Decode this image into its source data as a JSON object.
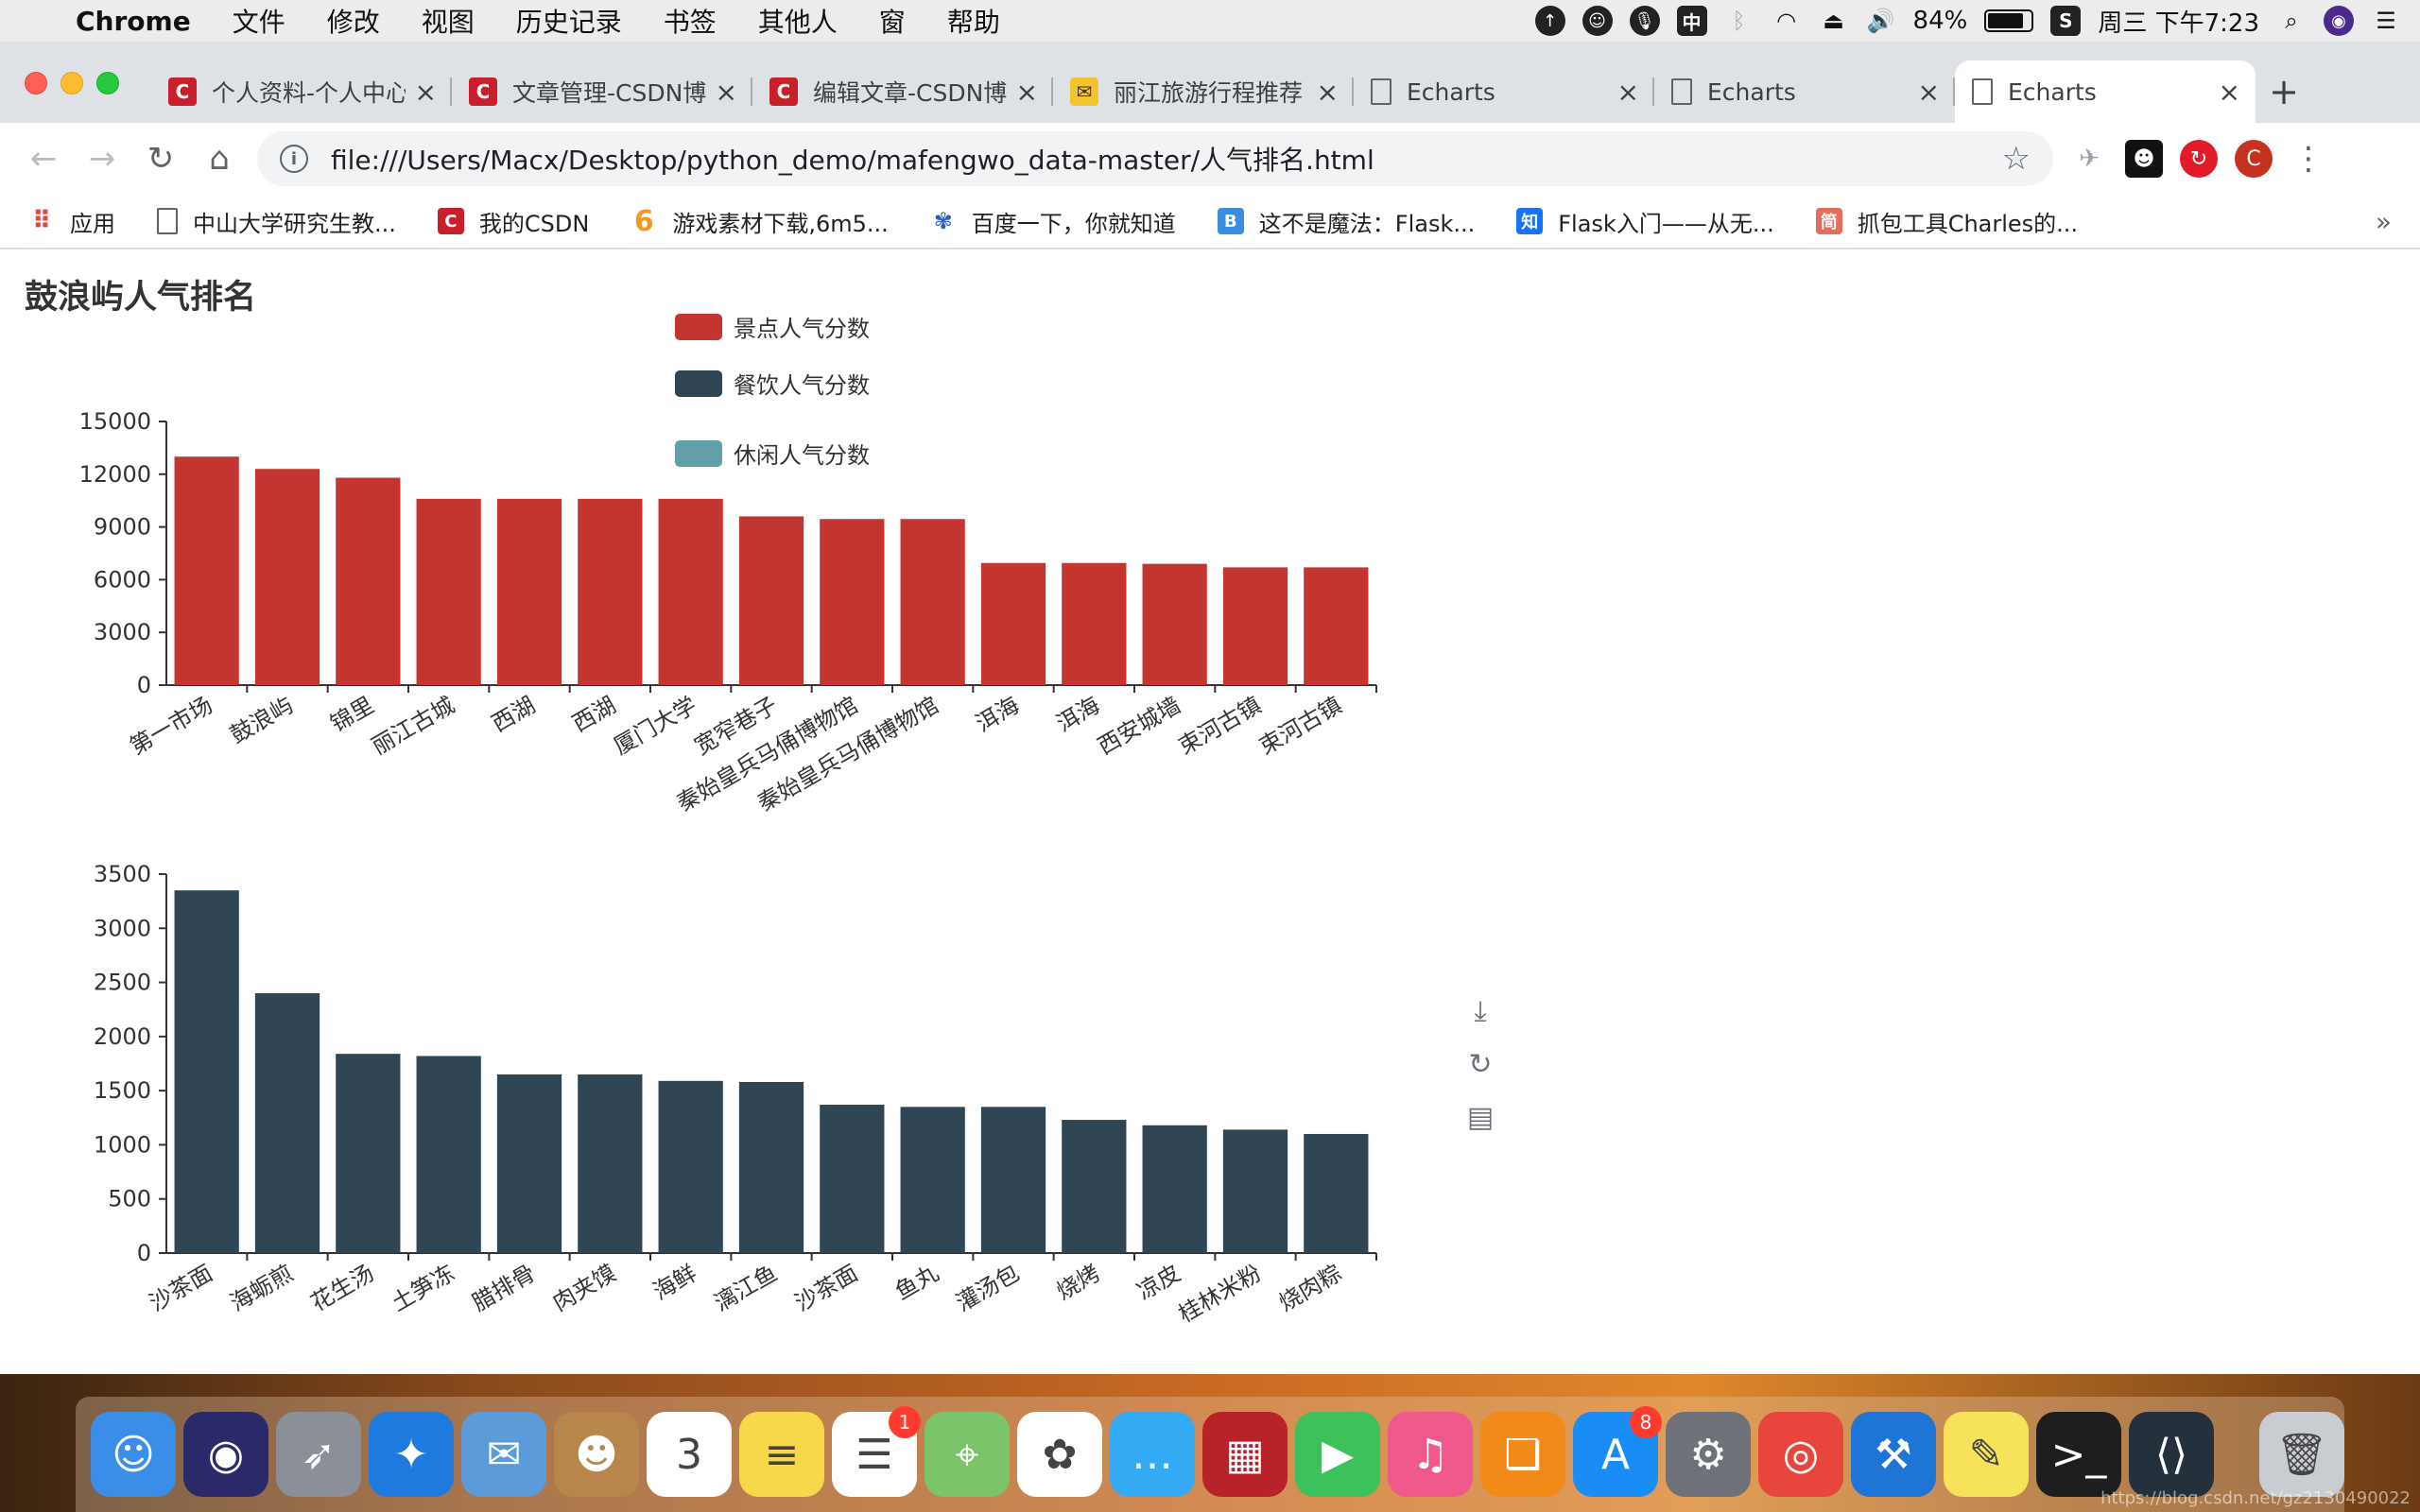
{
  "menubar": {
    "app_name": "Chrome",
    "items": [
      "文件",
      "修改",
      "视图",
      "历史记录",
      "书签",
      "其他人",
      "窗",
      "帮助"
    ],
    "battery_text": "84%",
    "battery_level": 0.84,
    "clock": "周三 下午7:23",
    "ime_label": "中"
  },
  "tabs": [
    {
      "label": "个人资料-个人中心",
      "icon": "csdn-icon"
    },
    {
      "label": "文章管理-CSDN博客",
      "icon": "csdn-icon"
    },
    {
      "label": "编辑文章-CSDN博客",
      "icon": "csdn-icon"
    },
    {
      "label": "丽江旅游行程推荐",
      "icon": "mail-icon"
    },
    {
      "label": "Echarts",
      "icon": "document-icon"
    },
    {
      "label": "Echarts",
      "icon": "document-icon"
    },
    {
      "label": "Echarts",
      "icon": "document-icon"
    }
  ],
  "omnibox": {
    "url": "file:///Users/Macx/Desktop/python_demo/mafengwo_data-master/人气排名.html"
  },
  "profile_initial": "C",
  "bookmarks": [
    {
      "label": "应用",
      "icon": "apps-icon"
    },
    {
      "label": "中山大学研究生教...",
      "icon": "page-icon"
    },
    {
      "label": "我的CSDN",
      "icon": "csdn-icon"
    },
    {
      "label": "游戏素材下载,6m5...",
      "icon": "six-icon"
    },
    {
      "label": "百度一下，你就知道",
      "icon": "baidu-icon"
    },
    {
      "label": "这不是魔法：Flask...",
      "icon": "blog-icon"
    },
    {
      "label": "Flask入门——从无...",
      "icon": "zhihu-icon"
    },
    {
      "label": "抓包工具Charles的...",
      "icon": "jianshu-icon"
    }
  ],
  "chart_data": [
    {
      "type": "bar",
      "title": "鼓浪屿人气排名",
      "legend": [
        "景点人气分数",
        "餐饮人气分数",
        "休闲人气分数"
      ],
      "legend_colors": [
        "#c23531",
        "#2f4554",
        "#61a0a8"
      ],
      "categories": [
        "第一市场",
        "鼓浪屿",
        "锦里",
        "丽江古城",
        "西湖",
        "西湖",
        "厦门大学",
        "宽窄巷子",
        "秦始皇兵马俑博物馆",
        "秦始皇兵马俑博物馆",
        "洱海",
        "洱海",
        "西安城墙",
        "束河古镇",
        "束河古镇"
      ],
      "series": [
        {
          "name": "景点人气分数",
          "color": "#c23531",
          "values": [
            13000,
            12300,
            11800,
            10600,
            10600,
            10600,
            10600,
            9600,
            9450,
            9450,
            6950,
            6950,
            6900,
            6700,
            6700
          ]
        }
      ],
      "yticks": [
        0,
        3000,
        6000,
        9000,
        12000,
        15000
      ],
      "ylim": [
        0,
        15000
      ]
    },
    {
      "type": "bar",
      "categories": [
        "沙茶面",
        "海蛎煎",
        "花生汤",
        "土笋冻",
        "腊排骨",
        "肉夹馍",
        "海鲜",
        "漓江鱼",
        "沙茶面",
        "鱼丸",
        "灌汤包",
        "烧烤",
        "凉皮",
        "桂林米粉",
        "烧肉粽"
      ],
      "series": [
        {
          "name": "餐饮人气分数",
          "color": "#2f4554",
          "values": [
            3350,
            2400,
            1840,
            1820,
            1650,
            1650,
            1590,
            1580,
            1370,
            1350,
            1350,
            1230,
            1180,
            1140,
            1100
          ]
        }
      ],
      "yticks": [
        0,
        500,
        1000,
        1500,
        2000,
        2500,
        3000,
        3500
      ],
      "ylim": [
        0,
        3500
      ]
    }
  ],
  "toolbox": [
    "download-icon",
    "refresh-icon",
    "data-view-icon"
  ],
  "dock": [
    {
      "name": "finder-icon",
      "color": "#3b8ee8",
      "glyph": "☺"
    },
    {
      "name": "siri-icon",
      "color": "#2a2a6a",
      "glyph": "◉"
    },
    {
      "name": "launchpad-icon",
      "color": "#8a8f98",
      "glyph": "➶"
    },
    {
      "name": "safari-icon",
      "color": "#1f7ae0",
      "glyph": "✦"
    },
    {
      "name": "mail-app-icon",
      "color": "#5a9bd8",
      "glyph": "✉"
    },
    {
      "name": "contacts-icon",
      "color": "#b8864a",
      "glyph": "☻"
    },
    {
      "name": "calendar-icon",
      "color": "#ffffff",
      "glyph": "3"
    },
    {
      "name": "notes-icon",
      "color": "#f7d84a",
      "glyph": "≡"
    },
    {
      "name": "reminders-icon",
      "color": "#ffffff",
      "glyph": "☰",
      "badge": "1"
    },
    {
      "name": "maps-icon",
      "color": "#7cc46a",
      "glyph": "⌖"
    },
    {
      "name": "photos-icon",
      "color": "#ffffff",
      "glyph": "✿"
    },
    {
      "name": "messages-icon",
      "color": "#34aaf5",
      "glyph": "…"
    },
    {
      "name": "photo-booth-icon",
      "color": "#b8232a",
      "glyph": "▦"
    },
    {
      "name": "facetime-icon",
      "color": "#3dc15b",
      "glyph": "▶"
    },
    {
      "name": "itunes-icon",
      "color": "#f05a8a",
      "glyph": "♫"
    },
    {
      "name": "ibooks-icon",
      "color": "#f28a1a",
      "glyph": "❑"
    },
    {
      "name": "app-store-icon",
      "color": "#1a8cf5",
      "glyph": "A",
      "badge": "8"
    },
    {
      "name": "system-preferences-icon",
      "color": "#6e7278",
      "glyph": "⚙"
    },
    {
      "name": "chrome-icon",
      "color": "#e8453c",
      "glyph": "◎"
    },
    {
      "name": "xcode-icon",
      "color": "#1f75d6",
      "glyph": "⚒"
    },
    {
      "name": "stickies-icon",
      "color": "#f7e35a",
      "glyph": "✎"
    },
    {
      "name": "terminal-icon",
      "color": "#1e1e1e",
      "glyph": ">_"
    },
    {
      "name": "vscode-icon",
      "color": "#24303c",
      "glyph": "⟨⟩"
    },
    {
      "name": "trash-icon",
      "color": "#c9ccd0",
      "glyph": "🗑"
    }
  ],
  "watermark": "https://blog.csdn.net/gz2130490022"
}
